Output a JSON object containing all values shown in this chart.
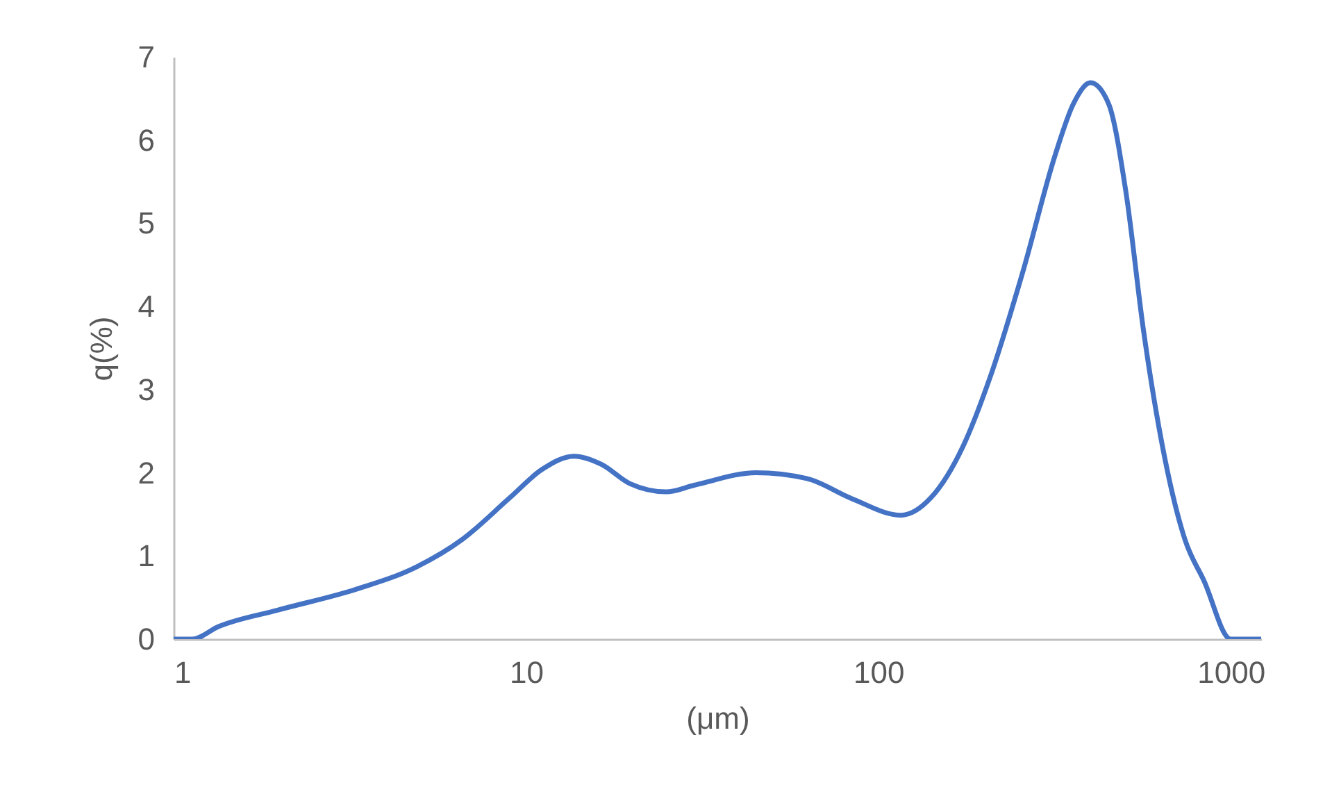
{
  "chart_data": {
    "type": "line",
    "xlabel": "(μm)",
    "ylabel": "q(%)",
    "log": "x",
    "grid": false,
    "marker": "none",
    "line_style": "solid",
    "xlim": [
      1,
      1220
    ],
    "xticks": [
      1,
      10,
      100,
      1000
    ],
    "ylim": [
      0,
      7
    ],
    "yticks": [
      0,
      1,
      2,
      3,
      4,
      5,
      6,
      7
    ],
    "x": [
      1,
      1.13,
      1.34,
      1.98,
      3.3,
      4.9,
      6.6,
      9.0,
      11.1,
      13.7,
      16.4,
      19.7,
      25,
      30,
      45,
      62.7,
      84,
      116,
      141,
      174,
      208,
      258,
      318,
      358,
      400,
      450,
      504,
      566,
      640,
      741,
      840,
      1000,
      1220
    ],
    "series": [
      {
        "color": "#4472c4",
        "values": [
          0,
          0,
          0.15,
          0.35,
          0.6,
          0.87,
          1.2,
          1.7,
          2.04,
          2.2,
          2.1,
          1.87,
          1.77,
          1.85,
          2.0,
          1.93,
          1.69,
          1.49,
          1.7,
          2.32,
          3.16,
          4.44,
          5.83,
          6.44,
          6.69,
          6.44,
          5.38,
          3.7,
          2.32,
          1.2,
          0.7,
          0,
          0
        ]
      }
    ]
  }
}
